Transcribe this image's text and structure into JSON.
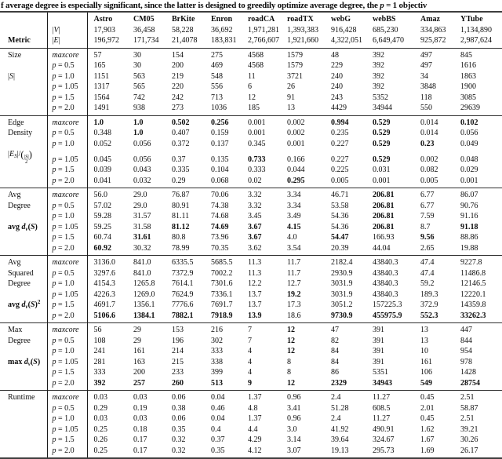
{
  "caption": "f average degree is especially significant, since the latter is designed to greedily optimize average degree, the p = 1 objectiv",
  "table": {
    "corner_label": "Metric",
    "columns": [
      "Astro",
      "CM05",
      "BrKite",
      "Enron",
      "roadCA",
      "roadTX",
      "webG",
      "webBS",
      "Amaz",
      "YTube"
    ],
    "stat_rows": [
      {
        "label": "|<i>V</i>|",
        "values": [
          "17,903",
          "36,458",
          "58,228",
          "36,692",
          "1,971,281",
          "1,393,383",
          "916,428",
          "685,230",
          "334,863",
          "1,134,890"
        ]
      },
      {
        "label": "|<i>E</i>|",
        "values": [
          "196,972",
          "171,734",
          "21,4078",
          "183,831",
          "2,766,607",
          "1,921,660",
          "4,322,051",
          "6,649,470",
          "925,872",
          "2,987,624"
        ]
      }
    ],
    "bold_marker_note": "values prefixed with * are rendered bold",
    "sections": [
      {
        "id": "size",
        "label_lines": [
          "Size",
          "",
          "|<i>S</i>|",
          "",
          "",
          ""
        ],
        "rows": [
          {
            "label": "maxcore",
            "values": [
              "57",
              "30",
              "154",
              "275",
              "4568",
              "1579",
              "48",
              "392",
              "497",
              "845"
            ]
          },
          {
            "label": "p = 0.5",
            "values": [
              "165",
              "30",
              "200",
              "469",
              "4568",
              "1579",
              "229",
              "392",
              "497",
              "1616"
            ]
          },
          {
            "label": "p = 1.0",
            "values": [
              "1151",
              "563",
              "219",
              "548",
              "11",
              "3721",
              "240",
              "392",
              "34",
              "1863"
            ]
          },
          {
            "label": "p = 1.05",
            "values": [
              "1317",
              "565",
              "220",
              "556",
              "6",
              "26",
              "240",
              "392",
              "3848",
              "1900"
            ]
          },
          {
            "label": "p = 1.5",
            "values": [
              "1564",
              "742",
              "242",
              "713",
              "12",
              "91",
              "243",
              "5352",
              "118",
              "3085"
            ]
          },
          {
            "label": "p = 2.0",
            "values": [
              "1491",
              "938",
              "273",
              "1036",
              "185",
              "13",
              "4429",
              "34944",
              "550",
              "29639"
            ]
          }
        ]
      },
      {
        "id": "edge-density",
        "label_lines": [
          "Edge",
          "Density",
          "",
          "|<i>E<sub>S</sub></i>|/<span class=bp>(</span><span class=bn><span>|<i>S</i>|</span><span>2</span></span><span class=bp>)</span>",
          "",
          ""
        ],
        "rows": [
          {
            "label": "maxcore",
            "values": [
              "*1.0",
              "*1.0",
              "*0.502",
              "*0.256",
              "0.001",
              "0.002",
              "*0.994",
              "*0.529",
              "0.014",
              "*0.102"
            ]
          },
          {
            "label": "p = 0.5",
            "values": [
              "0.348",
              "*1.0",
              "0.407",
              "0.159",
              "0.001",
              "0.002",
              "0.235",
              "*0.529",
              "0.014",
              "0.056"
            ]
          },
          {
            "label": "p = 1.0",
            "values": [
              "0.052",
              "0.056",
              "0.372",
              "0.137",
              "0.345",
              "0.001",
              "0.227",
              "*0.529",
              "*0.23",
              "0.049"
            ]
          },
          {
            "label": "p = 1.05",
            "values": [
              "0.045",
              "0.056",
              "0.37",
              "0.135",
              "*0.733",
              "0.166",
              "0.227",
              "*0.529",
              "0.002",
              "0.048"
            ]
          },
          {
            "label": "p = 1.5",
            "values": [
              "0.039",
              "0.043",
              "0.335",
              "0.104",
              "0.333",
              "0.044",
              "0.225",
              "0.031",
              "0.082",
              "0.029"
            ]
          },
          {
            "label": "p = 2.0",
            "values": [
              "0.041",
              "0.032",
              "0.29",
              "0.068",
              "0.02",
              "*0.295",
              "0.005",
              "0.001",
              "0.005",
              "0.001"
            ]
          }
        ]
      },
      {
        "id": "avg-degree",
        "label_lines": [
          "Avg",
          "Degree",
          "",
          "<b>avg <i>d<sub>v</sub></i>(<i>S</i>)</b>",
          "",
          ""
        ],
        "rows": [
          {
            "label": "maxcore",
            "values": [
              "56.0",
              "29.0",
              "76.87",
              "70.06",
              "3.32",
              "3.34",
              "46.71",
              "*206.81",
              "6.77",
              "86.07"
            ]
          },
          {
            "label": "p = 0.5",
            "values": [
              "57.02",
              "29.0",
              "80.91",
              "74.38",
              "3.32",
              "3.34",
              "53.58",
              "*206.81",
              "6.77",
              "90.76"
            ]
          },
          {
            "label": "p = 1.0",
            "values": [
              "59.28",
              "31.57",
              "81.11",
              "74.68",
              "3.45",
              "3.49",
              "54.36",
              "*206.81",
              "7.59",
              "91.16"
            ]
          },
          {
            "label": "p = 1.05",
            "values": [
              "59.25",
              "31.58",
              "*81.12",
              "*74.69",
              "*3.67",
              "*4.15",
              "54.36",
              "*206.81",
              "8.7",
              "*91.18"
            ]
          },
          {
            "label": "p = 1.5",
            "values": [
              "60.74",
              "*31.61",
              "80.8",
              "73.96",
              "*3.67",
              "4.0",
              "*54.47",
              "166.93",
              "*9.56",
              "88.86"
            ]
          },
          {
            "label": "p = 2.0",
            "values": [
              "*60.92",
              "30.32",
              "78.99",
              "70.35",
              "3.62",
              "3.54",
              "20.39",
              "44.04",
              "2.65",
              "19.88"
            ]
          }
        ]
      },
      {
        "id": "avg-squared-degree",
        "label_lines": [
          "Avg",
          "Squared",
          "Degree",
          "",
          "<b>avg <i>d<sub>v</sub></i>(<i>S</i>)<sup>2</sup></b>",
          ""
        ],
        "rows": [
          {
            "label": "maxcore",
            "values": [
              "3136.0",
              "841.0",
              "6335.5",
              "5685.5",
              "11.3",
              "11.7",
              "2182.4",
              "43840.3",
              "47.4",
              "9227.8"
            ]
          },
          {
            "label": "p = 0.5",
            "values": [
              "3297.6",
              "841.0",
              "7372.9",
              "7002.2",
              "11.3",
              "11.7",
              "2930.9",
              "43840.3",
              "47.4",
              "11486.8"
            ]
          },
          {
            "label": "p = 1.0",
            "values": [
              "4154.3",
              "1265.8",
              "7614.1",
              "7301.6",
              "12.2",
              "12.7",
              "3031.9",
              "43840.3",
              "59.2",
              "12146.5"
            ]
          },
          {
            "label": "p = 1.05",
            "values": [
              "4226.3",
              "1269.0",
              "7624.9",
              "7336.1",
              "13.7",
              "*19.2",
              "3031.9",
              "43840.3",
              "189.3",
              "12220.1"
            ]
          },
          {
            "label": "p = 1.5",
            "values": [
              "4691.7",
              "1356.1",
              "7776.6",
              "7691.7",
              "13.7",
              "17.3",
              "3051.2",
              "157225.3",
              "372.9",
              "14359.8"
            ]
          },
          {
            "label": "p = 2.0",
            "values": [
              "*5106.6",
              "*1384.1",
              "*7882.1",
              "*7918.9",
              "*13.9",
              "18.6",
              "*9730.9",
              "*455975.9",
              "*552.3",
              "*33262.3"
            ]
          }
        ]
      },
      {
        "id": "max-degree",
        "label_lines": [
          "Max",
          "Degree",
          "",
          "<b>max <i>d<sub>v</sub></i>(<i>S</i>)</b>",
          "",
          ""
        ],
        "rows": [
          {
            "label": "maxcore",
            "values": [
              "56",
              "29",
              "153",
              "216",
              "7",
              "*12",
              "47",
              "391",
              "13",
              "447"
            ]
          },
          {
            "label": "p = 0.5",
            "values": [
              "108",
              "29",
              "196",
              "302",
              "7",
              "*12",
              "82",
              "391",
              "13",
              "844"
            ]
          },
          {
            "label": "p = 1.0",
            "values": [
              "241",
              "161",
              "214",
              "333",
              "4",
              "*12",
              "84",
              "391",
              "10",
              "954"
            ]
          },
          {
            "label": "p = 1.05",
            "values": [
              "281",
              "163",
              "215",
              "338",
              "4",
              "8",
              "84",
              "391",
              "161",
              "978"
            ]
          },
          {
            "label": "p = 1.5",
            "values": [
              "333",
              "200",
              "233",
              "399",
              "4",
              "8",
              "86",
              "5351",
              "106",
              "1428"
            ]
          },
          {
            "label": "p = 2.0",
            "values": [
              "*392",
              "*257",
              "*260",
              "*513",
              "*9",
              "*12",
              "*2329",
              "*34943",
              "*549",
              "*28754"
            ]
          }
        ]
      },
      {
        "id": "runtime",
        "label_lines": [
          "Runtime",
          "",
          "",
          "",
          "",
          ""
        ],
        "rows": [
          {
            "label": "maxcore",
            "values": [
              "0.03",
              "0.03",
              "0.06",
              "0.04",
              "1.37",
              "0.96",
              "2.4",
              "11.27",
              "0.45",
              "2.51"
            ]
          },
          {
            "label": "p = 0.5",
            "values": [
              "0.29",
              "0.19",
              "0.38",
              "0.46",
              "4.8",
              "3.41",
              "51.28",
              "608.5",
              "2.01",
              "58.87"
            ]
          },
          {
            "label": "p = 1.0",
            "values": [
              "0.03",
              "0.03",
              "0.06",
              "0.04",
              "1.37",
              "0.96",
              "2.4",
              "11.27",
              "0.45",
              "2.51"
            ]
          },
          {
            "label": "p = 1.05",
            "values": [
              "0.25",
              "0.18",
              "0.35",
              "0.4",
              "4.4",
              "3.0",
              "41.92",
              "490.91",
              "1.62",
              "39.21"
            ]
          },
          {
            "label": "p = 1.5",
            "values": [
              "0.26",
              "0.17",
              "0.32",
              "0.37",
              "4.29",
              "3.14",
              "39.64",
              "324.67",
              "1.67",
              "30.26"
            ]
          },
          {
            "label": "p = 2.0",
            "values": [
              "0.25",
              "0.17",
              "0.32",
              "0.35",
              "4.12",
              "3.07",
              "19.13",
              "295.73",
              "1.69",
              "26.17"
            ]
          }
        ]
      }
    ]
  }
}
